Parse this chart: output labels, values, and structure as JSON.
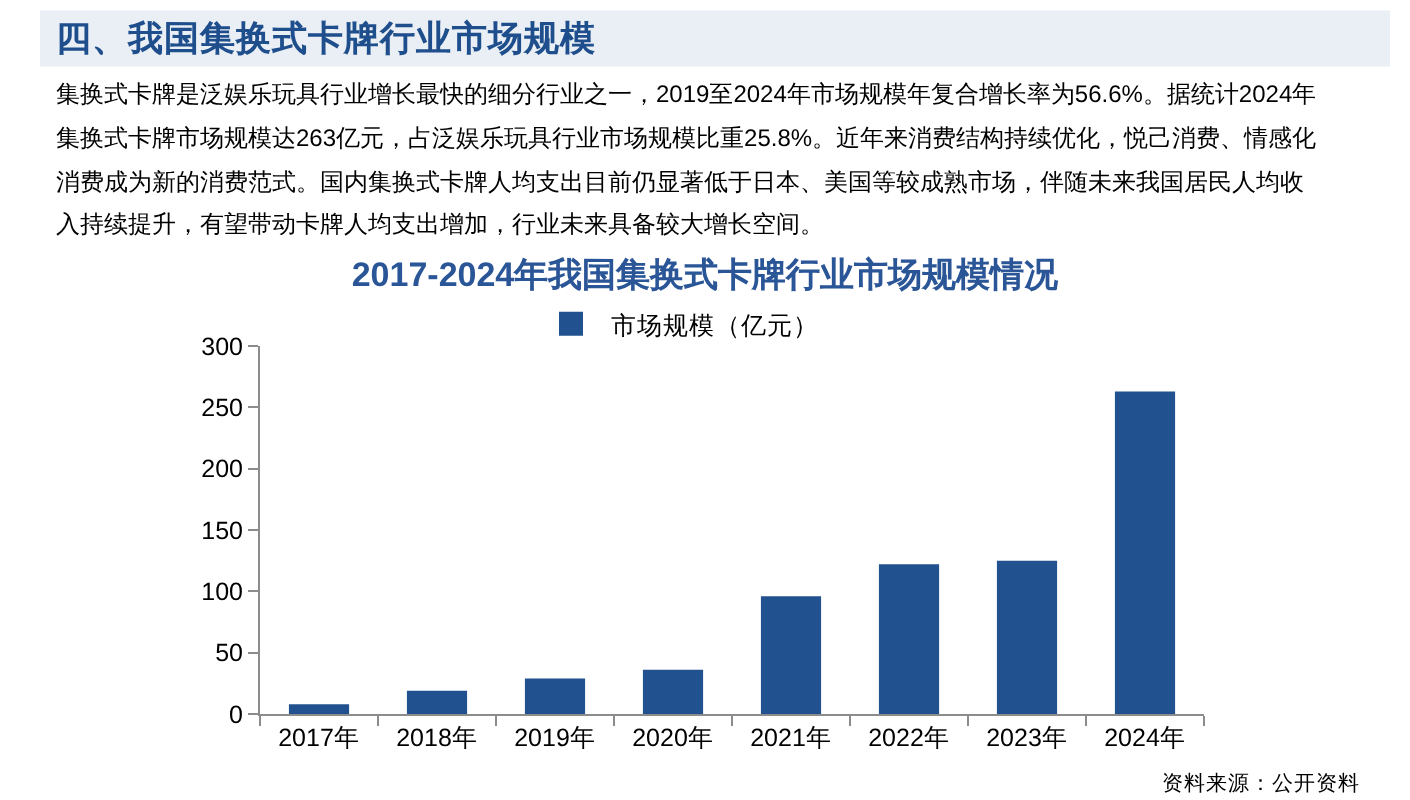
{
  "chart_data": {
    "type": "bar",
    "title": "2017-2024年我国集换式卡牌行业市场规模情况",
    "annotations": [
      "四、我国集换式卡牌行业市场规模",
      "集换式卡牌是泛娱乐玩具行业增长最快的细分行业之一，2019至2024年市场规模年复合增长率为56.6%。据统计2024年集换式卡牌市场规模达263亿元，占泛娱乐玩具行业市场规模比重25.8%。近年来消费结构持续优化，悦己消费、情感化消费成为新的消费范式。国内集换式卡牌人均支出目前仍显著低于日本、美国等较成熟市场，伴随未来我国居民人均收入持续提升，有望带动卡牌人均支出增加，行业未来具备较大增长空间。",
      "资料来源：公开资料"
    ],
    "categories": [
      "2017年",
      "2018年",
      "2019年",
      "2020年",
      "2021年",
      "2022年",
      "2023年",
      "2024年"
    ],
    "series": [
      {
        "name": "市场规模（亿元）",
        "color": "#21528f",
        "values": [
          8,
          19,
          29,
          36,
          96,
          122,
          125,
          263
        ]
      }
    ],
    "ylim": [
      0,
      300
    ],
    "yticks": [
      0,
      50,
      100,
      150,
      200,
      250,
      300
    ],
    "grid": false,
    "legend": "top"
  }
}
